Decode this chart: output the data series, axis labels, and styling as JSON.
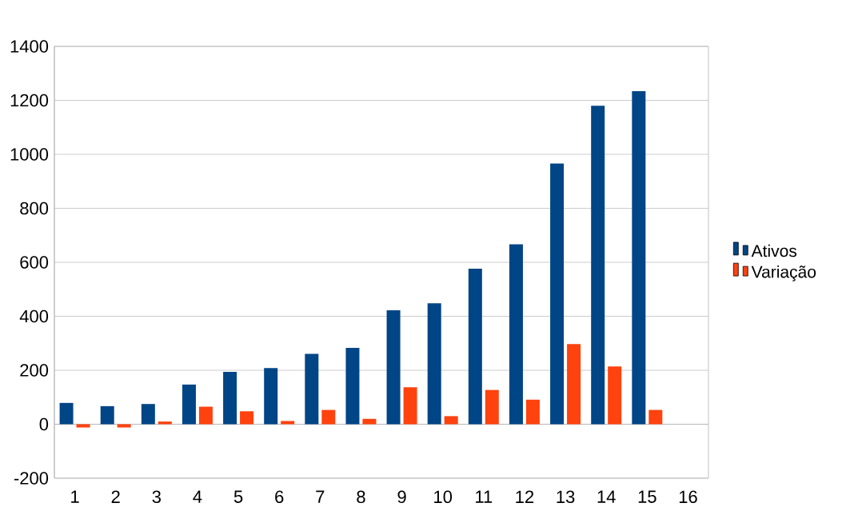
{
  "chart_data": {
    "type": "bar",
    "categories": [
      "1",
      "2",
      "3",
      "4",
      "5",
      "6",
      "7",
      "8",
      "9",
      "10",
      "11",
      "12",
      "13",
      "14",
      "15",
      "16"
    ],
    "series": [
      {
        "name": "Ativos",
        "color": "#004586",
        "values": [
          79,
          67,
          75,
          147,
          194,
          208,
          261,
          283,
          422,
          448,
          576,
          667,
          966,
          1180,
          1234,
          null
        ]
      },
      {
        "name": "Variação",
        "color": "#ff420e",
        "values": [
          -12,
          -12,
          10,
          65,
          48,
          12,
          53,
          20,
          137,
          30,
          127,
          91,
          297,
          214,
          53,
          null
        ]
      }
    ],
    "ylim": [
      -200,
      1400
    ],
    "yticks": [
      -200,
      0,
      200,
      400,
      600,
      800,
      1000,
      1200,
      1400
    ],
    "grid": "y",
    "legend": "right"
  }
}
